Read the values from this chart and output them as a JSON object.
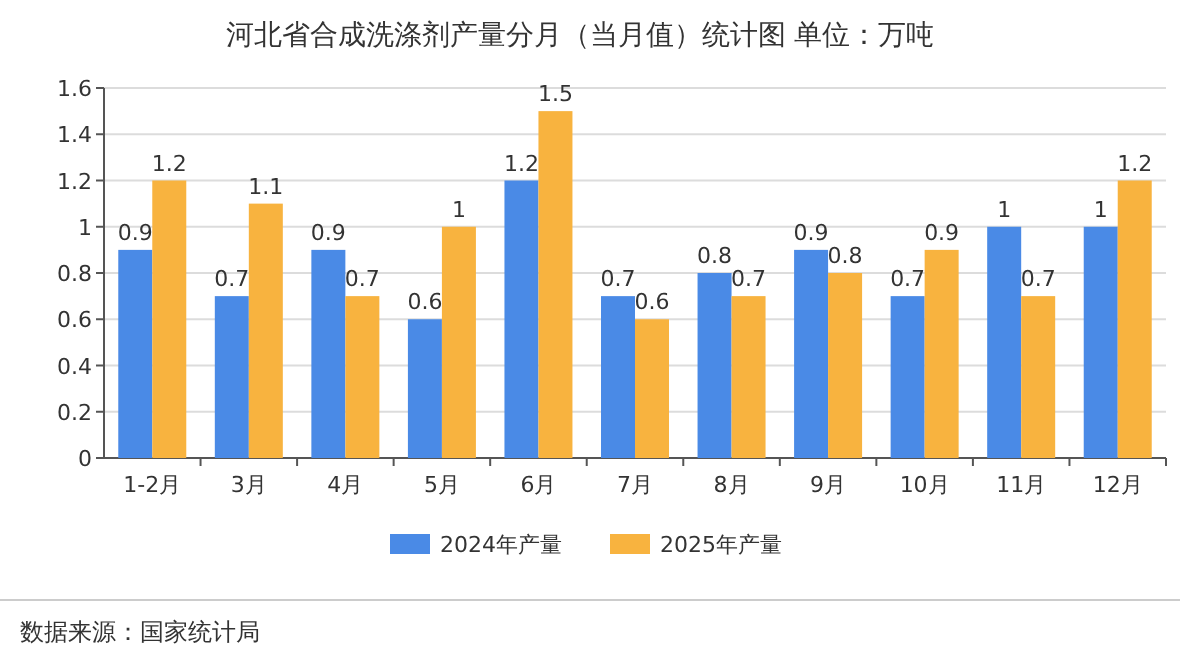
{
  "chart_data": {
    "type": "bar",
    "title": "河北省合成洗涤剂产量分月（当月值）统计图  单位：万吨",
    "categories": [
      "1-2月",
      "3月",
      "4月",
      "5月",
      "6月",
      "7月",
      "8月",
      "9月",
      "10月",
      "11月",
      "12月"
    ],
    "series": [
      {
        "name": "2024年产量",
        "color": "#4a8ae6",
        "values": [
          0.9,
          0.7,
          0.9,
          0.6,
          1.2,
          0.7,
          0.8,
          0.9,
          0.7,
          1,
          1
        ]
      },
      {
        "name": "2025年产量",
        "color": "#f8b33f",
        "values": [
          1.2,
          1.1,
          0.7,
          1,
          1.5,
          0.6,
          0.7,
          0.8,
          0.9,
          0.7,
          1.2
        ]
      }
    ],
    "ylim": [
      0,
      1.6
    ],
    "yticks": [
      0,
      0.2,
      0.4,
      0.6,
      0.8,
      1,
      1.2,
      1.4,
      1.6
    ],
    "grid": "y",
    "legend": "bottom",
    "data_labels": true,
    "annotations": [
      "数据来源：国家统计局"
    ]
  }
}
